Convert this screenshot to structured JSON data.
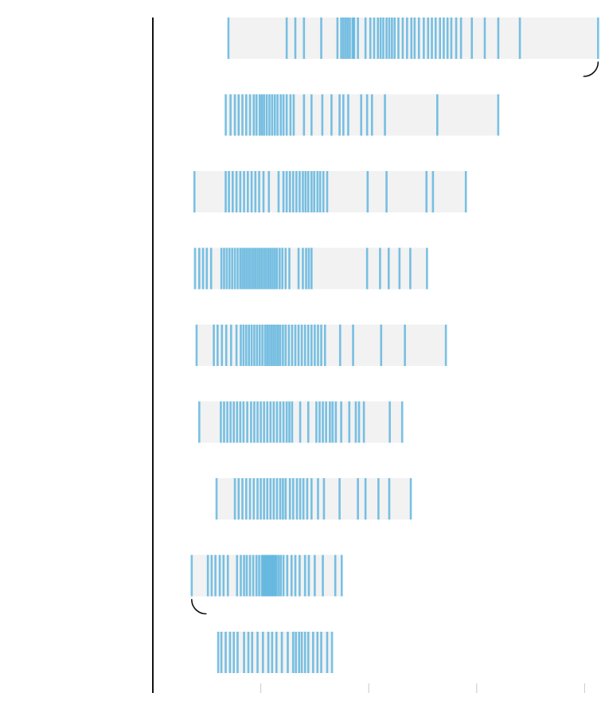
{
  "chart_data": {
    "type": "strip",
    "title": "",
    "subtitle": "",
    "xlabel": "",
    "ylabel": "",
    "xlim": [
      0,
      100
    ],
    "x_ticks": [
      20,
      40,
      60,
      80
    ],
    "x_tick_labels": [
      "",
      "",
      "",
      ""
    ],
    "grid": false,
    "legend": "none",
    "colors": {
      "background": "#ffffff",
      "band": "#f2f2f2",
      "tick": "#1b9ad6",
      "axis": "#111111",
      "axis_tick": "#c8c8c8",
      "annotation": "#111111"
    },
    "annotations": [
      {
        "row": 0,
        "anchor": "max",
        "shape": "bracket-right"
      },
      {
        "row": 7,
        "anchor": "min",
        "shape": "bracket-left"
      }
    ],
    "series": [
      {
        "range": [
          14.0,
          82.5
        ],
        "values": [
          14.0,
          24.8,
          26.4,
          28.0,
          31.2,
          34.2,
          34.9,
          35.3,
          35.7,
          36.1,
          36.5,
          37.0,
          37.3,
          38.0,
          39.4,
          40.3,
          41.0,
          41.7,
          42.2,
          42.7,
          43.3,
          43.8,
          44.3,
          44.8,
          45.5,
          46.3,
          47.1,
          47.9,
          48.5,
          49.3,
          50.2,
          51.0,
          51.7,
          52.4,
          53.2,
          53.9,
          54.6,
          55.3,
          56.2,
          57.1,
          59.1,
          61.5,
          64.0,
          68.0,
          82.5
        ]
      },
      {
        "range": [
          13.5,
          64.0
        ],
        "values": [
          13.5,
          14.4,
          15.2,
          15.9,
          16.6,
          17.3,
          18.0,
          18.7,
          19.2,
          19.8,
          20.2,
          20.6,
          21.1,
          21.6,
          22.1,
          22.6,
          23.1,
          23.7,
          24.2,
          24.8,
          25.5,
          26.1,
          28.0,
          29.4,
          31.4,
          33.1,
          34.6,
          35.3,
          36.2,
          38.6,
          39.7,
          40.6,
          43.0,
          52.7,
          64.0
        ]
      },
      {
        "range": [
          7.7,
          58.0
        ],
        "values": [
          7.7,
          13.5,
          14.1,
          14.8,
          15.5,
          16.2,
          16.9,
          17.6,
          18.3,
          19.0,
          19.7,
          20.5,
          21.5,
          23.3,
          24.2,
          24.8,
          25.4,
          26.0,
          26.6,
          27.2,
          27.8,
          28.3,
          28.8,
          29.4,
          29.9,
          30.5,
          31.0,
          31.6,
          32.3,
          39.8,
          43.3,
          50.7,
          51.9,
          58.0
        ]
      },
      {
        "range": [
          7.8,
          50.8
        ],
        "values": [
          7.8,
          8.6,
          9.3,
          10.0,
          10.8,
          12.7,
          13.2,
          13.7,
          14.2,
          14.7,
          15.2,
          15.7,
          16.2,
          16.6,
          17.0,
          17.4,
          17.8,
          18.2,
          18.6,
          19.0,
          19.4,
          19.8,
          20.2,
          20.6,
          21.0,
          21.4,
          21.8,
          22.2,
          22.6,
          23.0,
          23.5,
          24.0,
          24.6,
          25.3,
          27.0,
          27.8,
          28.4,
          28.9,
          29.4,
          39.7,
          42.1,
          43.7,
          45.7,
          47.7,
          50.8
        ]
      },
      {
        "range": [
          8.1,
          54.3
        ],
        "values": [
          8.1,
          11.3,
          12.0,
          12.8,
          13.6,
          14.5,
          15.5,
          16.3,
          16.8,
          17.3,
          17.8,
          18.3,
          18.8,
          19.3,
          19.8,
          20.3,
          20.8,
          21.2,
          21.6,
          22.0,
          22.4,
          22.8,
          23.2,
          23.6,
          24.1,
          24.6,
          25.2,
          25.8,
          26.4,
          27.0,
          27.6,
          28.2,
          28.8,
          29.4,
          30.0,
          30.6,
          31.2,
          31.9,
          34.7,
          37.1,
          42.3,
          46.7,
          54.3
        ]
      },
      {
        "range": [
          8.6,
          46.2
        ],
        "values": [
          8.6,
          12.6,
          13.2,
          13.8,
          14.4,
          15.0,
          15.6,
          16.2,
          16.8,
          17.5,
          18.2,
          18.8,
          19.4,
          20.0,
          20.6,
          21.2,
          21.8,
          22.4,
          23.0,
          23.6,
          24.2,
          24.8,
          25.3,
          25.8,
          27.3,
          28.8,
          30.3,
          30.9,
          31.5,
          32.1,
          32.8,
          33.3,
          33.9,
          34.9,
          36.4,
          37.6,
          38.2,
          39.1,
          43.9,
          46.2
        ]
      },
      {
        "range": [
          11.8,
          47.8
        ],
        "values": [
          11.8,
          15.2,
          15.9,
          16.6,
          17.3,
          18.0,
          18.7,
          19.4,
          20.0,
          20.6,
          21.2,
          21.8,
          22.4,
          23.0,
          23.6,
          24.1,
          24.6,
          25.4,
          26.0,
          26.7,
          27.3,
          27.9,
          28.6,
          29.4,
          30.6,
          31.7,
          34.6,
          38.0,
          39.4,
          41.8,
          43.8,
          47.8
        ]
      },
      {
        "range": [
          7.2,
          35.0
        ],
        "values": [
          7.2,
          10.2,
          10.9,
          11.6,
          12.4,
          13.1,
          13.9,
          15.6,
          16.3,
          16.9,
          17.4,
          18.0,
          18.6,
          19.2,
          19.7,
          20.2,
          20.5,
          20.8,
          21.1,
          21.4,
          21.7,
          22.0,
          22.3,
          22.6,
          22.9,
          23.3,
          23.7,
          24.2,
          24.9,
          25.7,
          26.4,
          27.2,
          28.2,
          28.9,
          30.0,
          31.5,
          33.8,
          35.0
        ]
      },
      {
        "range": [
          12.1,
          33.2
        ],
        "values": [
          12.1,
          12.7,
          13.5,
          14.3,
          15.0,
          15.7,
          16.9,
          17.7,
          18.4,
          19.4,
          20.4,
          21.4,
          22.1,
          22.9,
          23.9,
          25.0,
          26.0,
          26.5,
          27.1,
          27.6,
          28.2,
          28.8,
          29.7,
          30.5,
          31.2,
          32.3,
          33.2
        ]
      }
    ]
  }
}
